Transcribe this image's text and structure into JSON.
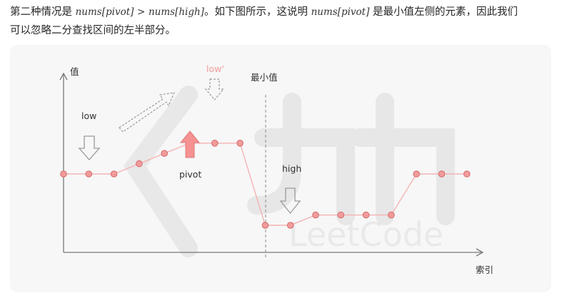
{
  "text": {
    "line1_a": "第二种情况是",
    "math_left": "nums[pivot]",
    "op": ">",
    "math_right": "nums[high]",
    "line1_b": "。如下图所示，这说明",
    "math_mid": "nums[pivot]",
    "line1_c": "是最小值左侧的元素，因此我们",
    "line2": "可以忽略二分查找区间的左半部分。"
  },
  "diagram": {
    "y_label": "值",
    "x_label": "索引",
    "labels": {
      "low": "low",
      "low_prime": "low'",
      "pivot": "pivot",
      "high": "high",
      "min_value": "最小值"
    },
    "series": [
      {
        "index": 0,
        "value": 6
      },
      {
        "index": 1,
        "value": 6
      },
      {
        "index": 2,
        "value": 6
      },
      {
        "index": 3,
        "value": 7
      },
      {
        "index": 4,
        "value": 8
      },
      {
        "index": 5,
        "value": 9
      },
      {
        "index": 6,
        "value": 9
      },
      {
        "index": 7,
        "value": 9
      },
      {
        "index": 8,
        "value": 1
      },
      {
        "index": 9,
        "value": 1
      },
      {
        "index": 10,
        "value": 2
      },
      {
        "index": 11,
        "value": 2
      },
      {
        "index": 12,
        "value": 2
      },
      {
        "index": 13,
        "value": 2
      },
      {
        "index": 14,
        "value": 6
      },
      {
        "index": 15,
        "value": 6
      },
      {
        "index": 16,
        "value": 6
      }
    ],
    "colors": {
      "point_fill": "#f29b9b",
      "point_stroke": "#d46a6a",
      "line": "#f4b3b3",
      "pivot_arrow": "#f59191",
      "outline_arrow": "#9a9a9a",
      "axis": "#777777"
    }
  }
}
